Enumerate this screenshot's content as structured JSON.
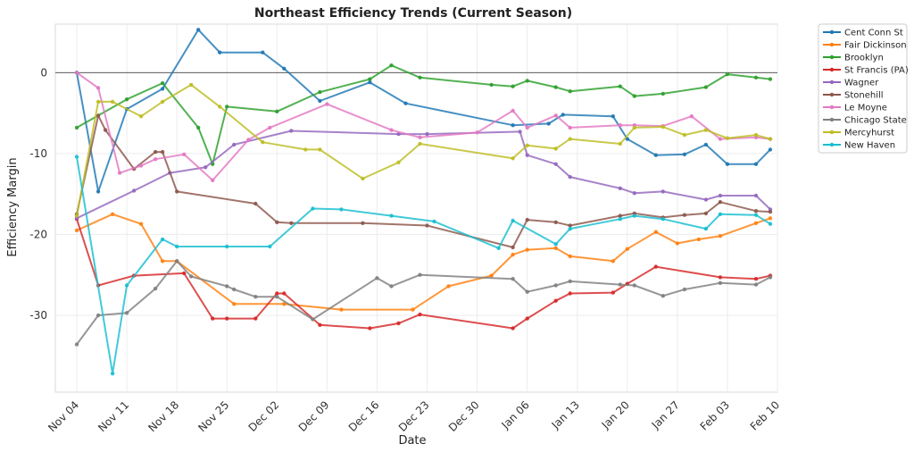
{
  "chart_data": {
    "type": "line",
    "title": "Northeast Efficiency Trends (Current Season)",
    "xlabel": "Date",
    "ylabel": "Efficiency Margin",
    "ylim": [
      -39.5,
      6.0
    ],
    "xlim": [
      "2024-11-01",
      "2025-02-10"
    ],
    "yticks": [
      0,
      -10,
      -20,
      -30
    ],
    "xticks": [
      {
        "date": "2024-11-04",
        "label": "Nov 04"
      },
      {
        "date": "2024-11-11",
        "label": "Nov 11"
      },
      {
        "date": "2024-11-18",
        "label": "Nov 18"
      },
      {
        "date": "2024-11-25",
        "label": "Nov 25"
      },
      {
        "date": "2024-12-02",
        "label": "Dec 02"
      },
      {
        "date": "2024-12-09",
        "label": "Dec 09"
      },
      {
        "date": "2024-12-16",
        "label": "Dec 16"
      },
      {
        "date": "2024-12-23",
        "label": "Dec 23"
      },
      {
        "date": "2024-12-30",
        "label": "Dec 30"
      },
      {
        "date": "2025-01-06",
        "label": "Jan 06"
      },
      {
        "date": "2025-01-13",
        "label": "Jan 13"
      },
      {
        "date": "2025-01-20",
        "label": "Jan 20"
      },
      {
        "date": "2025-01-27",
        "label": "Jan 27"
      },
      {
        "date": "2025-02-03",
        "label": "Feb 03"
      },
      {
        "date": "2025-02-10",
        "label": "Feb 10"
      }
    ],
    "grid": true,
    "reference_line": 0,
    "legend_position": "outside-top-right",
    "series": [
      {
        "name": "Cent Conn St",
        "color": "#1f77b4",
        "points": [
          [
            "2024-11-04",
            0
          ],
          [
            "2024-11-07",
            -14.7
          ],
          [
            "2024-11-11",
            -4.5
          ],
          [
            "2024-11-16",
            -2.0
          ],
          [
            "2024-11-21",
            5.3
          ],
          [
            "2024-11-24",
            2.5
          ],
          [
            "2024-11-30",
            2.5
          ],
          [
            "2024-12-03",
            0.5
          ],
          [
            "2024-12-08",
            -3.5
          ],
          [
            "2024-12-15",
            -1.2
          ],
          [
            "2024-12-20",
            -3.8
          ],
          [
            "2025-01-04",
            -6.5
          ],
          [
            "2025-01-09",
            -6.3
          ],
          [
            "2025-01-11",
            -5.2
          ],
          [
            "2025-01-18",
            -5.4
          ],
          [
            "2025-01-20",
            -8.2
          ],
          [
            "2025-01-24",
            -10.2
          ],
          [
            "2025-01-28",
            -10.1
          ],
          [
            "2025-01-31",
            -8.9
          ],
          [
            "2025-02-03",
            -11.3
          ],
          [
            "2025-02-07",
            -11.3
          ],
          [
            "2025-02-09",
            -9.5
          ]
        ]
      },
      {
        "name": "Fair Dickinson",
        "color": "#ff7f0e",
        "points": [
          [
            "2024-11-04",
            -19.5
          ],
          [
            "2024-11-09",
            -17.5
          ],
          [
            "2024-11-13",
            -18.7
          ],
          [
            "2024-11-16",
            -23.3
          ],
          [
            "2024-11-18",
            -23.3
          ],
          [
            "2024-11-26",
            -28.6
          ],
          [
            "2024-12-03",
            -28.6
          ],
          [
            "2024-12-11",
            -29.3
          ],
          [
            "2024-12-21",
            -29.3
          ],
          [
            "2024-12-26",
            -26.4
          ],
          [
            "2025-01-01",
            -25.1
          ],
          [
            "2025-01-04",
            -22.5
          ],
          [
            "2025-01-06",
            -21.9
          ],
          [
            "2025-01-10",
            -21.7
          ],
          [
            "2025-01-12",
            -22.7
          ],
          [
            "2025-01-18",
            -23.3
          ],
          [
            "2025-01-20",
            -21.8
          ],
          [
            "2025-01-24",
            -19.7
          ],
          [
            "2025-01-27",
            -21.1
          ],
          [
            "2025-01-30",
            -20.6
          ],
          [
            "2025-02-02",
            -20.2
          ],
          [
            "2025-02-07",
            -18.6
          ],
          [
            "2025-02-09",
            -18.0
          ]
        ]
      },
      {
        "name": "Brooklyn",
        "color": "#2ca02c",
        "points": [
          [
            "2024-11-04",
            -6.8
          ],
          [
            "2024-11-11",
            -3.3
          ],
          [
            "2024-11-16",
            -1.3
          ],
          [
            "2024-11-21",
            -6.8
          ],
          [
            "2024-11-23",
            -11.3
          ],
          [
            "2024-11-25",
            -4.2
          ],
          [
            "2024-12-02",
            -4.8
          ],
          [
            "2024-12-08",
            -2.4
          ],
          [
            "2024-12-15",
            -0.8
          ],
          [
            "2024-12-18",
            0.9
          ],
          [
            "2024-12-22",
            -0.6
          ],
          [
            "2025-01-01",
            -1.5
          ],
          [
            "2025-01-04",
            -1.7
          ],
          [
            "2025-01-06",
            -1.0
          ],
          [
            "2025-01-10",
            -1.8
          ],
          [
            "2025-01-12",
            -2.3
          ],
          [
            "2025-01-19",
            -1.7
          ],
          [
            "2025-01-21",
            -2.9
          ],
          [
            "2025-01-25",
            -2.6
          ],
          [
            "2025-01-31",
            -1.8
          ],
          [
            "2025-02-03",
            -0.2
          ],
          [
            "2025-02-07",
            -0.6
          ],
          [
            "2025-02-09",
            -0.8
          ]
        ]
      },
      {
        "name": "St Francis (PA)",
        "color": "#d62728",
        "points": [
          [
            "2024-11-04",
            -18.1
          ],
          [
            "2024-11-07",
            -26.3
          ],
          [
            "2024-11-12",
            -25.1
          ],
          [
            "2024-11-19",
            -24.8
          ],
          [
            "2024-11-23",
            -30.4
          ],
          [
            "2024-11-25",
            -30.4
          ],
          [
            "2024-11-29",
            -30.4
          ],
          [
            "2024-12-02",
            -27.3
          ],
          [
            "2024-12-03",
            -27.3
          ],
          [
            "2024-12-08",
            -31.2
          ],
          [
            "2024-12-15",
            -31.6
          ],
          [
            "2024-12-19",
            -31.0
          ],
          [
            "2024-12-22",
            -29.9
          ],
          [
            "2025-01-04",
            -31.6
          ],
          [
            "2025-01-06",
            -30.4
          ],
          [
            "2025-01-10",
            -28.2
          ],
          [
            "2025-01-12",
            -27.3
          ],
          [
            "2025-01-18",
            -27.2
          ],
          [
            "2025-01-20",
            -26.1
          ],
          [
            "2025-01-24",
            -24.0
          ],
          [
            "2025-02-02",
            -25.3
          ],
          [
            "2025-02-07",
            -25.5
          ],
          [
            "2025-02-09",
            -25.1
          ]
        ]
      },
      {
        "name": "Wagner",
        "color": "#9467bd",
        "points": [
          [
            "2024-11-04",
            -18.0
          ],
          [
            "2024-11-12",
            -14.6
          ],
          [
            "2024-11-17",
            -12.4
          ],
          [
            "2024-11-22",
            -11.7
          ],
          [
            "2024-11-26",
            -8.9
          ],
          [
            "2024-12-04",
            -7.2
          ],
          [
            "2024-12-19",
            -7.6
          ],
          [
            "2024-12-23",
            -7.6
          ],
          [
            "2025-01-05",
            -7.3
          ],
          [
            "2025-01-06",
            -10.2
          ],
          [
            "2025-01-10",
            -11.3
          ],
          [
            "2025-01-12",
            -12.9
          ],
          [
            "2025-01-19",
            -14.3
          ],
          [
            "2025-01-21",
            -14.9
          ],
          [
            "2025-01-25",
            -14.7
          ],
          [
            "2025-01-31",
            -15.7
          ],
          [
            "2025-02-02",
            -15.2
          ],
          [
            "2025-02-07",
            -15.2
          ],
          [
            "2025-02-09",
            -16.9
          ]
        ]
      },
      {
        "name": "Stonehill",
        "color": "#8c564b",
        "points": [
          [
            "2024-11-04",
            -17.5
          ],
          [
            "2024-11-07",
            -5.3
          ],
          [
            "2024-11-08",
            -7.1
          ],
          [
            "2024-11-12",
            -11.9
          ],
          [
            "2024-11-15",
            -9.8
          ],
          [
            "2024-11-16",
            -9.8
          ],
          [
            "2024-11-18",
            -14.7
          ],
          [
            "2024-11-29",
            -16.2
          ],
          [
            "2024-12-02",
            -18.5
          ],
          [
            "2024-12-04",
            -18.6
          ],
          [
            "2024-12-14",
            -18.6
          ],
          [
            "2024-12-23",
            -18.9
          ],
          [
            "2025-01-04",
            -21.6
          ],
          [
            "2025-01-06",
            -18.2
          ],
          [
            "2025-01-10",
            -18.5
          ],
          [
            "2025-01-12",
            -18.9
          ],
          [
            "2025-01-19",
            -17.7
          ],
          [
            "2025-01-21",
            -17.4
          ],
          [
            "2025-01-25",
            -17.9
          ],
          [
            "2025-01-28",
            -17.6
          ],
          [
            "2025-01-31",
            -17.4
          ],
          [
            "2025-02-02",
            -16.0
          ],
          [
            "2025-02-07",
            -17.1
          ],
          [
            "2025-02-09",
            -17.2
          ]
        ]
      },
      {
        "name": "Le Moyne",
        "color": "#e377c2",
        "points": [
          [
            "2024-11-04",
            0
          ],
          [
            "2024-11-07",
            -1.9
          ],
          [
            "2024-11-10",
            -12.4
          ],
          [
            "2024-11-13",
            -11.5
          ],
          [
            "2024-11-15",
            -10.7
          ],
          [
            "2024-11-19",
            -10.1
          ],
          [
            "2024-11-23",
            -13.3
          ],
          [
            "2024-11-28",
            -8.3
          ],
          [
            "2024-12-01",
            -6.8
          ],
          [
            "2024-12-09",
            -3.9
          ],
          [
            "2024-12-18",
            -7.1
          ],
          [
            "2024-12-22",
            -8.0
          ],
          [
            "2024-12-30",
            -7.4
          ],
          [
            "2025-01-04",
            -4.7
          ],
          [
            "2025-01-06",
            -6.8
          ],
          [
            "2025-01-10",
            -5.3
          ],
          [
            "2025-01-12",
            -6.8
          ],
          [
            "2025-01-19",
            -6.5
          ],
          [
            "2025-01-21",
            -6.5
          ],
          [
            "2025-01-25",
            -6.6
          ],
          [
            "2025-01-29",
            -5.4
          ],
          [
            "2025-02-02",
            -8.2
          ],
          [
            "2025-02-07",
            -8.0
          ],
          [
            "2025-02-09",
            -8.2
          ]
        ]
      },
      {
        "name": "Chicago State",
        "color": "#7f7f7f",
        "points": [
          [
            "2024-11-04",
            -33.6
          ],
          [
            "2024-11-07",
            -30.0
          ],
          [
            "2024-11-11",
            -29.7
          ],
          [
            "2024-11-15",
            -26.7
          ],
          [
            "2024-11-18",
            -23.3
          ],
          [
            "2024-11-20",
            -25.2
          ],
          [
            "2024-11-25",
            -26.4
          ],
          [
            "2024-11-26",
            -26.8
          ],
          [
            "2024-11-29",
            -27.7
          ],
          [
            "2024-12-02",
            -27.7
          ],
          [
            "2024-12-07",
            -30.5
          ],
          [
            "2024-12-16",
            -25.4
          ],
          [
            "2024-12-18",
            -26.4
          ],
          [
            "2024-12-22",
            -25.0
          ],
          [
            "2025-01-04",
            -25.5
          ],
          [
            "2025-01-06",
            -27.1
          ],
          [
            "2025-01-10",
            -26.3
          ],
          [
            "2025-01-12",
            -25.8
          ],
          [
            "2025-01-19",
            -26.2
          ],
          [
            "2025-01-21",
            -26.3
          ],
          [
            "2025-01-25",
            -27.6
          ],
          [
            "2025-01-28",
            -26.8
          ],
          [
            "2025-02-02",
            -26.0
          ],
          [
            "2025-02-07",
            -26.2
          ],
          [
            "2025-02-09",
            -25.3
          ]
        ]
      },
      {
        "name": "Mercyhurst",
        "color": "#bcbd22",
        "points": [
          [
            "2024-11-04",
            -17.7
          ],
          [
            "2024-11-07",
            -3.6
          ],
          [
            "2024-11-09",
            -3.6
          ],
          [
            "2024-11-13",
            -5.4
          ],
          [
            "2024-11-16",
            -3.6
          ],
          [
            "2024-11-20",
            -1.5
          ],
          [
            "2024-11-24",
            -4.2
          ],
          [
            "2024-11-30",
            -8.6
          ],
          [
            "2024-12-06",
            -9.5
          ],
          [
            "2024-12-08",
            -9.5
          ],
          [
            "2024-12-14",
            -13.1
          ],
          [
            "2024-12-19",
            -11.1
          ],
          [
            "2024-12-22",
            -8.8
          ],
          [
            "2025-01-04",
            -10.6
          ],
          [
            "2025-01-06",
            -9.0
          ],
          [
            "2025-01-10",
            -9.4
          ],
          [
            "2025-01-12",
            -8.2
          ],
          [
            "2025-01-19",
            -8.8
          ],
          [
            "2025-01-21",
            -6.8
          ],
          [
            "2025-01-25",
            -6.7
          ],
          [
            "2025-01-28",
            -7.7
          ],
          [
            "2025-01-31",
            -7.1
          ],
          [
            "2025-02-03",
            -8.1
          ],
          [
            "2025-02-07",
            -7.7
          ],
          [
            "2025-02-09",
            -8.2
          ]
        ]
      },
      {
        "name": "New Haven",
        "color": "#17becf",
        "points": [
          [
            "2024-11-04",
            -10.4
          ],
          [
            "2024-11-09",
            -37.2
          ],
          [
            "2024-11-11",
            -26.3
          ],
          [
            "2024-11-16",
            -20.6
          ],
          [
            "2024-11-18",
            -21.5
          ],
          [
            "2024-11-25",
            -21.5
          ],
          [
            "2024-12-01",
            -21.5
          ],
          [
            "2024-12-07",
            -16.8
          ],
          [
            "2024-12-11",
            -16.9
          ],
          [
            "2024-12-18",
            -17.7
          ],
          [
            "2024-12-24",
            -18.4
          ],
          [
            "2025-01-02",
            -21.7
          ],
          [
            "2025-01-04",
            -18.3
          ],
          [
            "2025-01-10",
            -21.2
          ],
          [
            "2025-01-12",
            -19.3
          ],
          [
            "2025-01-19",
            -18.1
          ],
          [
            "2025-01-21",
            -17.7
          ],
          [
            "2025-01-25",
            -18.1
          ],
          [
            "2025-01-31",
            -19.3
          ],
          [
            "2025-02-02",
            -17.5
          ],
          [
            "2025-02-07",
            -17.6
          ],
          [
            "2025-02-09",
            -18.7
          ]
        ]
      }
    ]
  }
}
